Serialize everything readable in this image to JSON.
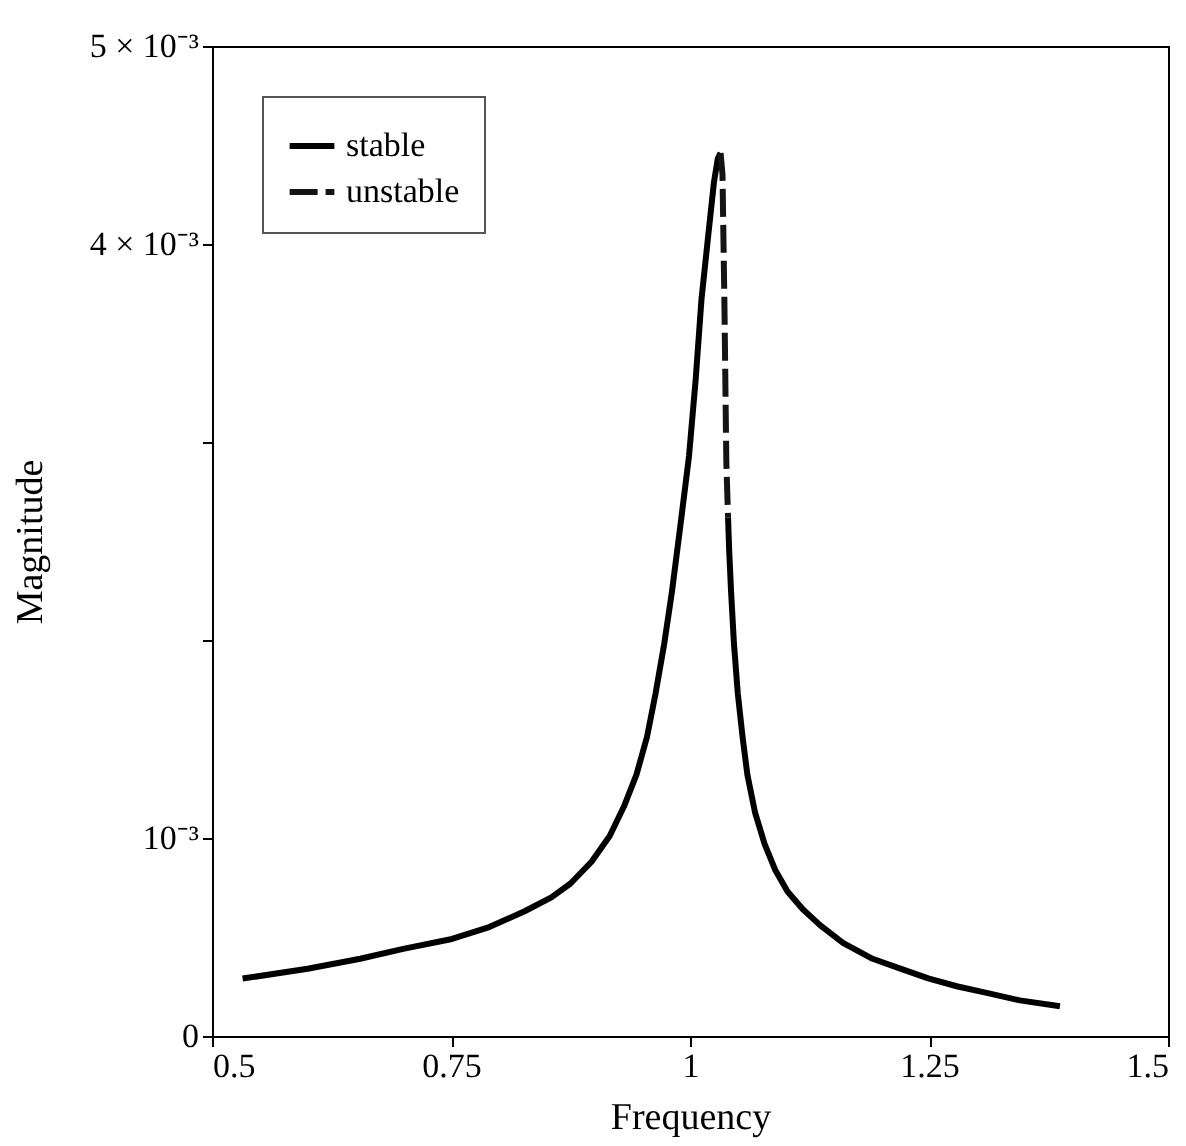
{
  "chart_data": {
    "type": "line",
    "xlabel": "Frequency",
    "ylabel": "Magnitude",
    "xlim": [
      0.5,
      1.5
    ],
    "xticks": [
      0.5,
      0.75,
      1,
      1.25,
      1.5
    ],
    "ylim": [
      0,
      0.005
    ],
    "yticks": [
      {
        "value": 0,
        "label": "0"
      },
      {
        "value": 0.001,
        "label": "10⁻³"
      },
      {
        "value": 0.002,
        "label": null
      },
      {
        "value": 0.003,
        "label": null
      },
      {
        "value": 0.004,
        "label": "4 × 10⁻³"
      },
      {
        "value": 0.005,
        "label": "5 × 10⁻³"
      }
    ],
    "grid": false,
    "legend": "top left",
    "marker": "none",
    "series": [
      {
        "name": "stable",
        "color": "#000000",
        "line_style": "solid",
        "x": [
          0.532,
          0.6,
          0.655,
          0.7,
          0.751,
          0.79,
          0.827,
          0.855,
          0.875,
          0.897,
          0.916,
          0.931,
          0.944,
          0.955,
          0.964,
          0.973,
          0.981,
          0.99,
          0.999,
          1.006,
          1.012,
          1.019,
          1.025,
          1.029,
          1.032,
          1.036,
          1.0398,
          1.041,
          1.043,
          1.046,
          1.05,
          1.055,
          1.06,
          1.068,
          1.078,
          1.089,
          1.102,
          1.118,
          1.136,
          1.16,
          1.191,
          1.22,
          1.25,
          1.28,
          1.308,
          1.345,
          1.387
        ],
        "values": [
          0.00029,
          0.00034,
          0.00039,
          0.00044,
          0.00049,
          0.00055,
          0.00063,
          0.0007,
          0.00077,
          0.00088,
          0.00101,
          0.00116,
          0.00132,
          0.00151,
          0.00173,
          0.00198,
          0.00224,
          0.00258,
          0.00293,
          0.00332,
          0.00372,
          0.00404,
          0.00431,
          0.00443,
          0.00446,
          null,
          0.00262,
          0.00245,
          0.00224,
          0.00198,
          0.00173,
          0.00151,
          0.00132,
          0.00113,
          0.00097,
          0.00084,
          0.00073,
          0.00064,
          0.00056,
          0.00047,
          0.00039,
          0.00034,
          0.00029,
          0.00025,
          0.00022,
          0.00018,
          0.00015
        ]
      },
      {
        "name": "unstable",
        "color": "#141414",
        "line_style": "dashed",
        "x": [
          1.032,
          1.034,
          1.036,
          1.038,
          1.0398
        ],
        "values": [
          0.00446,
          0.00435,
          0.0037,
          0.0029,
          0.00262
        ]
      }
    ]
  }
}
